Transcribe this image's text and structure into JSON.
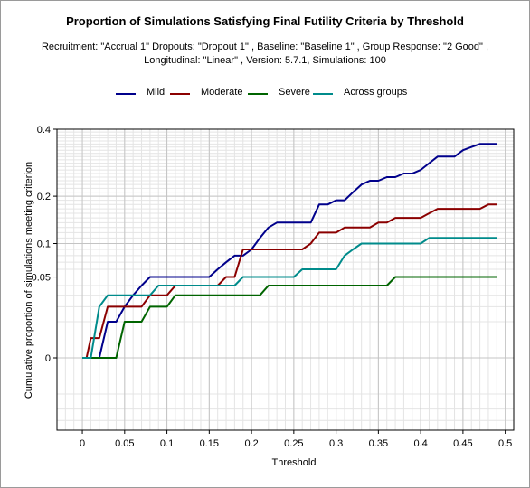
{
  "chart_data": {
    "type": "line",
    "title": "Proportion of Simulations Satisfying Final Futility Criteria by Threshold",
    "subtitle_line1": "Recruitment: \"Accrual 1\" Dropouts: \"Dropout 1\" , Baseline: \"Baseline 1\" , Group Response: \"2 Good\" ,",
    "subtitle_line2": "Longitudinal: \"Linear\" , Version: 5.7.1, Simulations: 100",
    "xlabel": "Threshold",
    "ylabel": "Cumulative proportion of simulations meeting criterion",
    "xlim": [
      -0.03,
      0.51
    ],
    "ylim": [
      -0.04,
      0.4
    ],
    "y_scale": "sqrt",
    "x_ticks": [
      0,
      0.05,
      0.1,
      0.15,
      0.2,
      0.25,
      0.3,
      0.35,
      0.4,
      0.45,
      0.5
    ],
    "x_tick_labels": [
      "0",
      "0.05",
      "0.1",
      "0.15",
      "0.2",
      "0.25",
      "0.3",
      "0.35",
      "0.4",
      "0.45",
      "0.5"
    ],
    "y_ticks": [
      0,
      0.05,
      0.1,
      0.2,
      0.4
    ],
    "y_tick_labels": [
      "0",
      "0.05",
      "0.1",
      "0.2",
      "0.4"
    ],
    "grid": true,
    "legend_position": "top",
    "series": [
      {
        "name": "Mild",
        "color": "#00008b",
        "x": [
          0,
          0.01,
          0.02,
          0.03,
          0.04,
          0.05,
          0.06,
          0.07,
          0.08,
          0.09,
          0.1,
          0.11,
          0.12,
          0.13,
          0.14,
          0.15,
          0.16,
          0.17,
          0.18,
          0.19,
          0.2,
          0.21,
          0.22,
          0.23,
          0.24,
          0.25,
          0.26,
          0.27,
          0.28,
          0.29,
          0.3,
          0.31,
          0.32,
          0.33,
          0.34,
          0.35,
          0.36,
          0.37,
          0.38,
          0.39,
          0.4,
          0.41,
          0.42,
          0.43,
          0.44,
          0.45,
          0.46,
          0.47,
          0.48,
          0.49
        ],
        "y": [
          0,
          0,
          0,
          0.01,
          0.01,
          0.02,
          0.03,
          0.04,
          0.05,
          0.05,
          0.05,
          0.05,
          0.05,
          0.05,
          0.05,
          0.05,
          0.06,
          0.07,
          0.08,
          0.08,
          0.09,
          0.11,
          0.13,
          0.14,
          0.14,
          0.14,
          0.14,
          0.14,
          0.18,
          0.18,
          0.19,
          0.19,
          0.21,
          0.23,
          0.24,
          0.24,
          0.25,
          0.25,
          0.26,
          0.26,
          0.27,
          0.29,
          0.31,
          0.31,
          0.31,
          0.33,
          0.34,
          0.35,
          0.35,
          0.35
        ]
      },
      {
        "name": "Moderate",
        "color": "#8b0000",
        "x": [
          0,
          0.005,
          0.01,
          0.02,
          0.03,
          0.04,
          0.05,
          0.06,
          0.07,
          0.08,
          0.09,
          0.1,
          0.11,
          0.12,
          0.13,
          0.14,
          0.15,
          0.16,
          0.17,
          0.18,
          0.19,
          0.2,
          0.21,
          0.22,
          0.23,
          0.24,
          0.25,
          0.26,
          0.27,
          0.28,
          0.29,
          0.3,
          0.31,
          0.32,
          0.33,
          0.34,
          0.35,
          0.36,
          0.37,
          0.38,
          0.39,
          0.4,
          0.41,
          0.42,
          0.43,
          0.44,
          0.45,
          0.46,
          0.47,
          0.48,
          0.49
        ],
        "y": [
          0,
          0,
          0.003,
          0.003,
          0.02,
          0.02,
          0.02,
          0.02,
          0.02,
          0.03,
          0.03,
          0.03,
          0.04,
          0.04,
          0.04,
          0.04,
          0.04,
          0.04,
          0.05,
          0.05,
          0.09,
          0.09,
          0.09,
          0.09,
          0.09,
          0.09,
          0.09,
          0.09,
          0.1,
          0.12,
          0.12,
          0.12,
          0.13,
          0.13,
          0.13,
          0.13,
          0.14,
          0.14,
          0.15,
          0.15,
          0.15,
          0.15,
          0.16,
          0.17,
          0.17,
          0.17,
          0.17,
          0.17,
          0.17,
          0.18,
          0.18
        ]
      },
      {
        "name": "Severe",
        "color": "#006400",
        "x": [
          0,
          0.01,
          0.02,
          0.03,
          0.04,
          0.05,
          0.06,
          0.07,
          0.08,
          0.09,
          0.1,
          0.11,
          0.12,
          0.13,
          0.14,
          0.15,
          0.16,
          0.17,
          0.18,
          0.19,
          0.2,
          0.21,
          0.22,
          0.23,
          0.24,
          0.25,
          0.26,
          0.27,
          0.28,
          0.29,
          0.3,
          0.31,
          0.32,
          0.33,
          0.34,
          0.35,
          0.36,
          0.37,
          0.38,
          0.39,
          0.4,
          0.41,
          0.42,
          0.43,
          0.44,
          0.45,
          0.46,
          0.47,
          0.48,
          0.49
        ],
        "y": [
          0,
          0,
          0,
          0,
          0,
          0.01,
          0.01,
          0.01,
          0.02,
          0.02,
          0.02,
          0.03,
          0.03,
          0.03,
          0.03,
          0.03,
          0.03,
          0.03,
          0.03,
          0.03,
          0.03,
          0.03,
          0.04,
          0.04,
          0.04,
          0.04,
          0.04,
          0.04,
          0.04,
          0.04,
          0.04,
          0.04,
          0.04,
          0.04,
          0.04,
          0.04,
          0.04,
          0.05,
          0.05,
          0.05,
          0.05,
          0.05,
          0.05,
          0.05,
          0.05,
          0.05,
          0.05,
          0.05,
          0.05,
          0.05
        ]
      },
      {
        "name": "Across groups",
        "color": "#008b8b",
        "x": [
          0,
          0.01,
          0.02,
          0.03,
          0.04,
          0.05,
          0.06,
          0.07,
          0.08,
          0.09,
          0.1,
          0.11,
          0.12,
          0.13,
          0.14,
          0.15,
          0.16,
          0.17,
          0.18,
          0.19,
          0.2,
          0.21,
          0.22,
          0.23,
          0.24,
          0.25,
          0.26,
          0.27,
          0.28,
          0.29,
          0.3,
          0.31,
          0.32,
          0.33,
          0.34,
          0.35,
          0.36,
          0.37,
          0.38,
          0.39,
          0.4,
          0.41,
          0.42,
          0.43,
          0.44,
          0.45,
          0.46,
          0.47,
          0.48,
          0.49
        ],
        "y": [
          0,
          0,
          0.02,
          0.03,
          0.03,
          0.03,
          0.03,
          0.03,
          0.03,
          0.04,
          0.04,
          0.04,
          0.04,
          0.04,
          0.04,
          0.04,
          0.04,
          0.04,
          0.04,
          0.05,
          0.05,
          0.05,
          0.05,
          0.05,
          0.05,
          0.05,
          0.06,
          0.06,
          0.06,
          0.06,
          0.06,
          0.08,
          0.09,
          0.1,
          0.1,
          0.1,
          0.1,
          0.1,
          0.1,
          0.1,
          0.1,
          0.11,
          0.11,
          0.11,
          0.11,
          0.11,
          0.11,
          0.11,
          0.11,
          0.11
        ]
      }
    ]
  }
}
